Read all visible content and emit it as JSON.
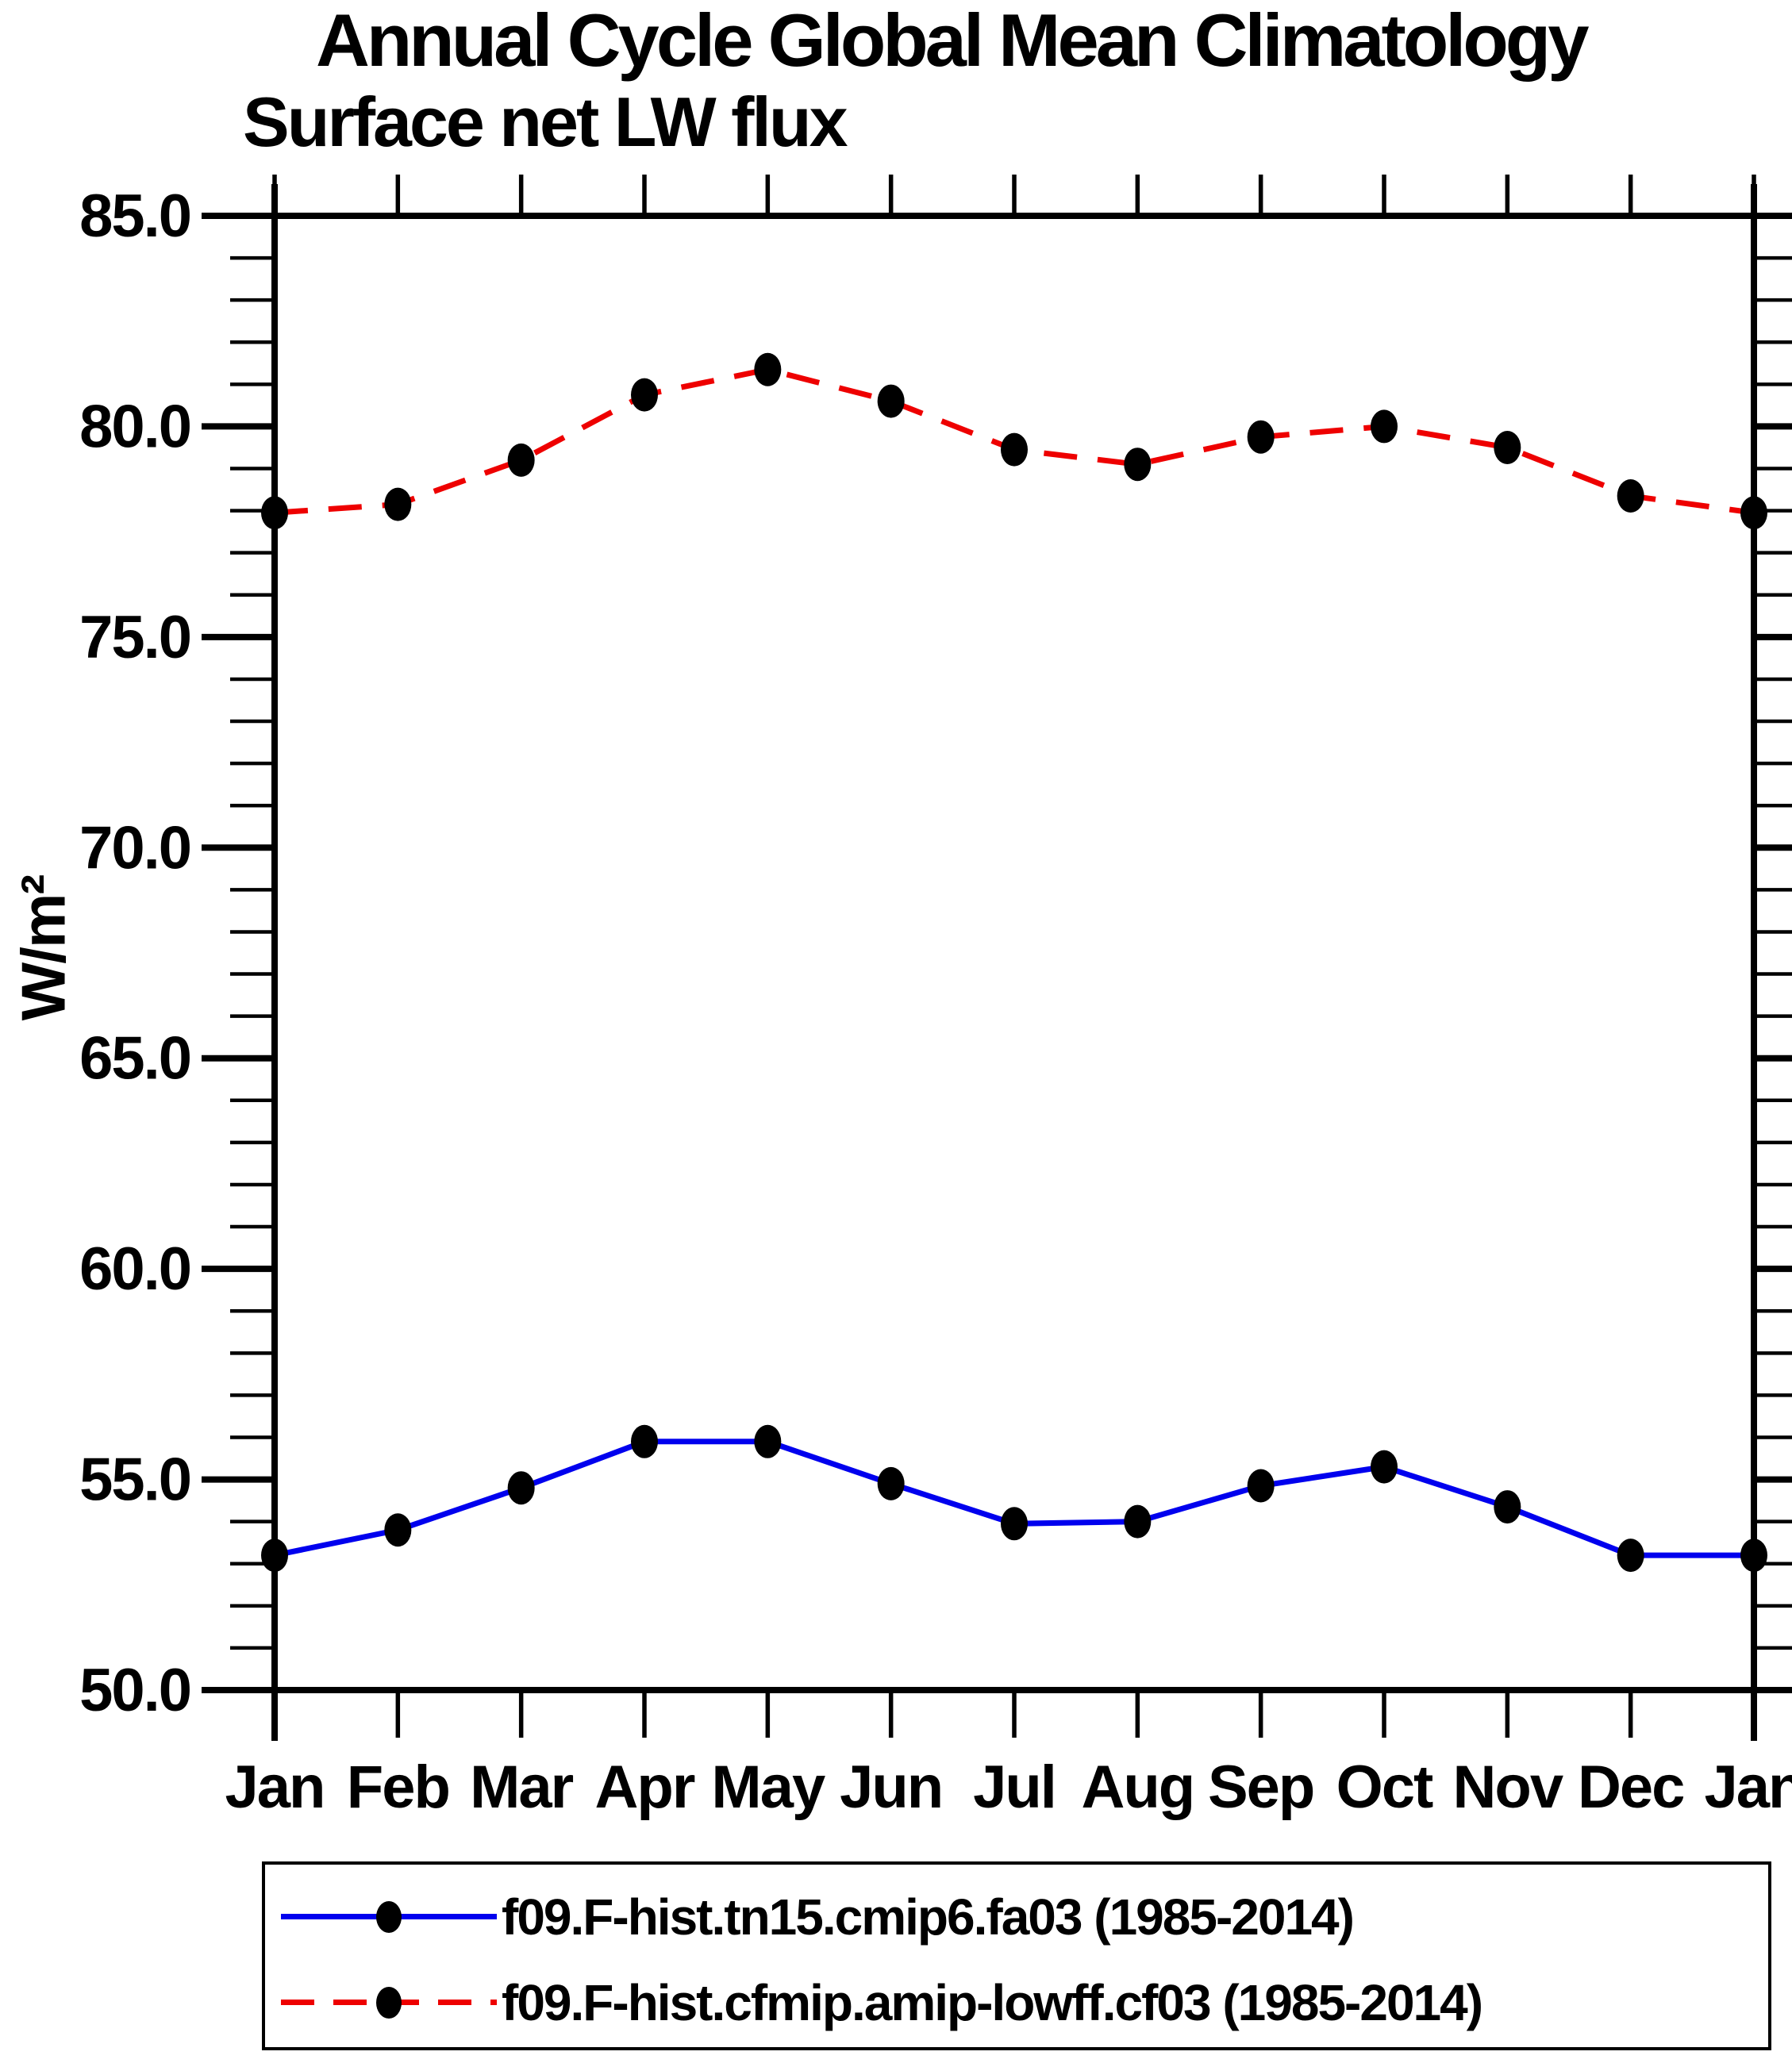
{
  "title": "Annual Cycle Global Mean Climatology",
  "subtitle": "Surface net LW flux",
  "ylabel": "W/m²",
  "colors": {
    "series1_blue": "#0000ee",
    "series2_red": "#ee0000",
    "marker_black": "#000000",
    "axis_black": "#000000",
    "background": "#ffffff"
  },
  "chart_data": {
    "type": "line",
    "categories": [
      "Jan",
      "Feb",
      "Mar",
      "Apr",
      "May",
      "Jun",
      "Jul",
      "Aug",
      "Sep",
      "Oct",
      "Nov",
      "Dec",
      "Jan"
    ],
    "series": [
      {
        "name": "f09.F-hist.tn15.cmip6.fa03 (1985-2014)",
        "color": "#0000ee",
        "line_style": "solid",
        "marker": "black-dot",
        "values": [
          53.2,
          53.8,
          54.8,
          55.9,
          55.9,
          54.9,
          53.95,
          54.0,
          54.85,
          55.3,
          54.35,
          53.2,
          53.2
        ]
      },
      {
        "name": "f09.F-hist.cfmip.amip-lowff.cf03 (1985-2014)",
        "color": "#ee0000",
        "line_style": "dashed",
        "marker": "black-dot",
        "values": [
          77.95,
          78.15,
          79.2,
          80.75,
          81.35,
          80.6,
          79.45,
          79.1,
          79.75,
          80.0,
          79.5,
          78.35,
          77.95
        ]
      }
    ],
    "xlabel": "",
    "ylabel": "W/m²",
    "ylim": [
      50.0,
      85.0
    ],
    "yticks_major": [
      50,
      55,
      60,
      65,
      70,
      75,
      80,
      85
    ],
    "ytick_labels": [
      "50.0",
      "55.0",
      "60.0",
      "65.0",
      "70.0",
      "75.0",
      "80.0",
      "85.0"
    ],
    "yminor_step": 1,
    "grid": false,
    "legend_position": "bottom"
  },
  "legend": {
    "items": [
      {
        "label": "f09.F-hist.tn15.cmip6.fa03 (1985-2014)"
      },
      {
        "label": "f09.F-hist.cfmip.amip-lowff.cf03 (1985-2014)"
      }
    ]
  }
}
